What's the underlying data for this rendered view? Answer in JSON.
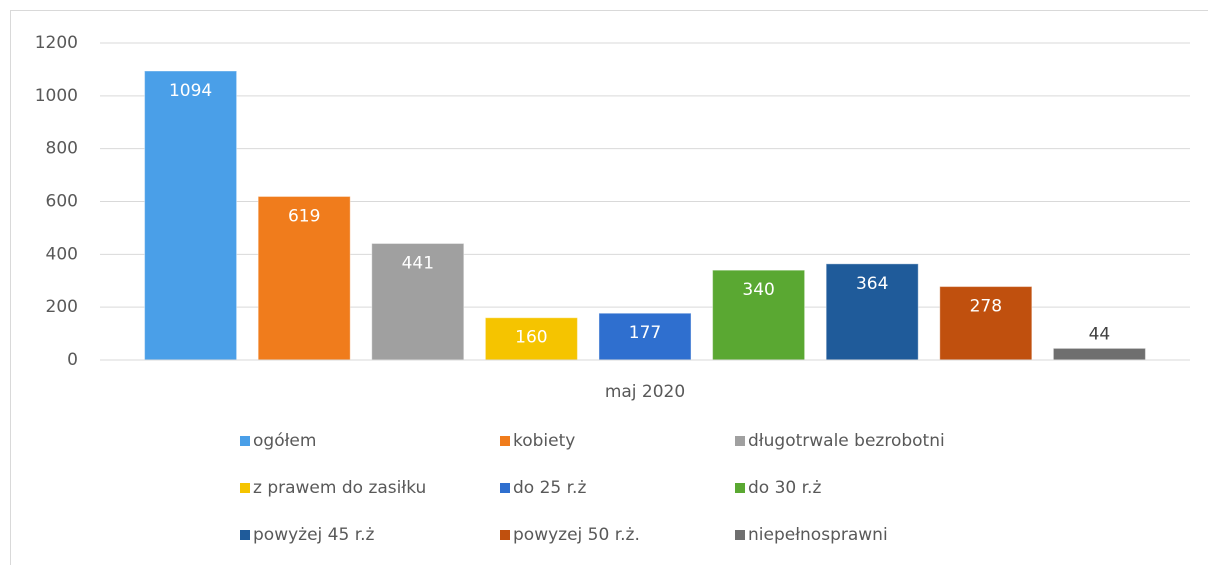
{
  "chart_data": {
    "type": "bar",
    "categories": [
      "maj 2020"
    ],
    "series": [
      {
        "name": "ogółem",
        "color": "#4a9fe8",
        "values": [
          1094
        ]
      },
      {
        "name": "kobiety",
        "color": "#f07c1c",
        "values": [
          619
        ]
      },
      {
        "name": "długotrwale bezrobotni",
        "color": "#a0a0a0",
        "values": [
          441
        ]
      },
      {
        "name": "z prawem do zasiłku",
        "color": "#f5c400",
        "values": [
          160
        ]
      },
      {
        "name": "do 25 r.ż",
        "color": "#2f6fcf",
        "values": [
          177
        ]
      },
      {
        "name": "do 30 r.ż",
        "color": "#5aa832",
        "values": [
          340
        ]
      },
      {
        "name": "powyżej 45 r.ż",
        "color": "#1f5b9a",
        "values": [
          364
        ]
      },
      {
        "name": "powyzej 50 r.ż.",
        "color": "#c0500e",
        "values": [
          278
        ]
      },
      {
        "name": "niepełnosprawni",
        "color": "#6f6f6f",
        "values": [
          44
        ]
      }
    ],
    "ylim": [
      0,
      1200
    ],
    "yticks": [
      0,
      200,
      400,
      600,
      800,
      1000,
      1200
    ],
    "grid": true
  }
}
